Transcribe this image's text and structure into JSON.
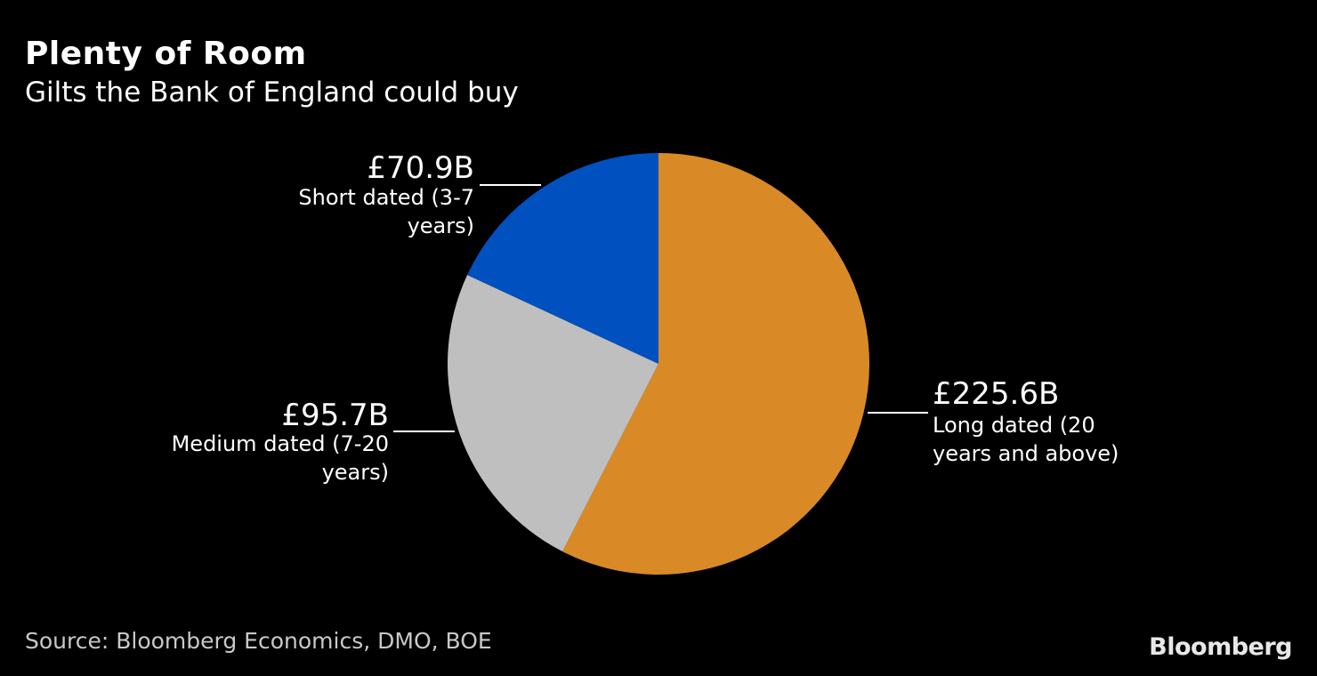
{
  "title": "Plenty of Room",
  "subtitle": "Gilts the Bank of England could buy",
  "source": "Source: Bloomberg Economics, DMO, BOE",
  "logo_text": "Bloomberg",
  "colors": {
    "background": "#000000",
    "long": "#d98a26",
    "medium": "#bfbfbf",
    "short": "#0050c0"
  },
  "chart_data": {
    "type": "pie",
    "slices": [
      {
        "value": 225.6,
        "value_label": "£225.6B",
        "label_lines": [
          "Long dated (20",
          "years and above)"
        ],
        "color": "#d98a26"
      },
      {
        "value": 95.7,
        "value_label": "£95.7B",
        "label_lines": [
          "Medium dated (7-20",
          "years)"
        ],
        "color": "#bfbfbf"
      },
      {
        "value": 70.9,
        "value_label": "£70.9B",
        "label_lines": [
          "Short dated (3-7",
          "years)"
        ],
        "color": "#0050c0"
      }
    ]
  }
}
